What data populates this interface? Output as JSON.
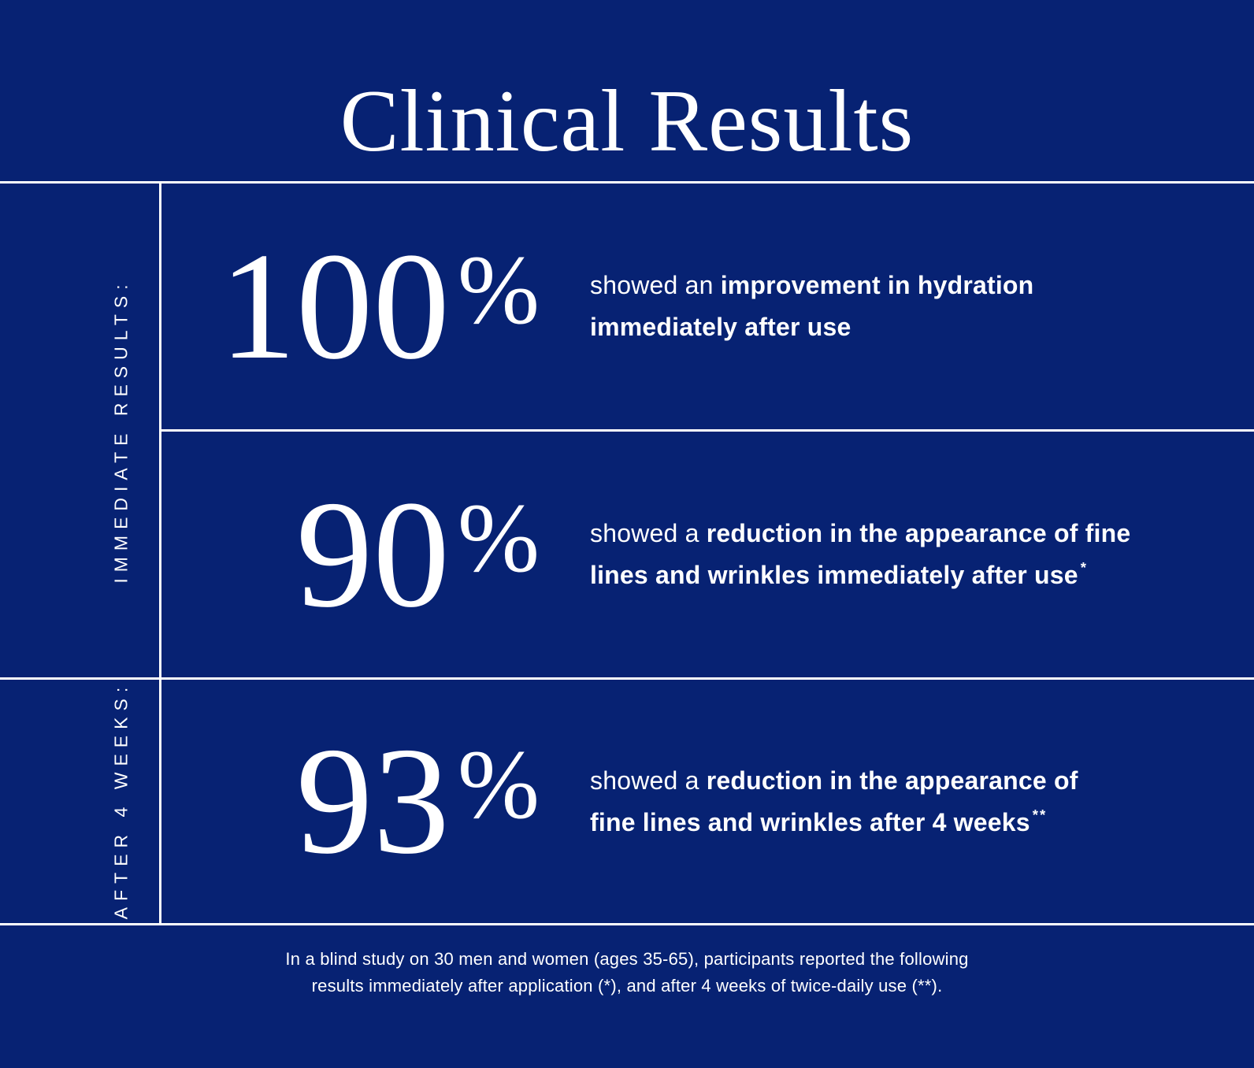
{
  "title": "Clinical Results",
  "colors": {
    "background": "#072273",
    "text": "#FFFFFF",
    "divider": "#FFFFFF"
  },
  "side_labels": [
    {
      "text": "IMMEDIATE RESULTS:"
    },
    {
      "text": "AFTER 4 WEEKS:"
    }
  ],
  "results": [
    {
      "percent": "100",
      "unit": "%",
      "lead": "showed an",
      "bold_line1": "improvement in hydration",
      "bold_line2": "immediately after use",
      "footnote_mark": ""
    },
    {
      "percent": "90",
      "unit": "%",
      "lead": "showed a",
      "bold_line1": "reduction in the appearance of fine",
      "bold_line2": "lines and wrinkles immediately after use",
      "footnote_mark": "*"
    },
    {
      "percent": "93",
      "unit": "%",
      "lead": "showed a",
      "bold_line1": "reduction in the appearance of",
      "bold_line2": "fine lines and wrinkles after 4 weeks",
      "footnote_mark": "**"
    }
  ],
  "footnote": {
    "lines": [
      "In a blind study on 30 men and women (ages 35-65), participants reported the following",
      "results immediately after application (*), and after 4 weeks of twice-daily use (**)."
    ]
  }
}
